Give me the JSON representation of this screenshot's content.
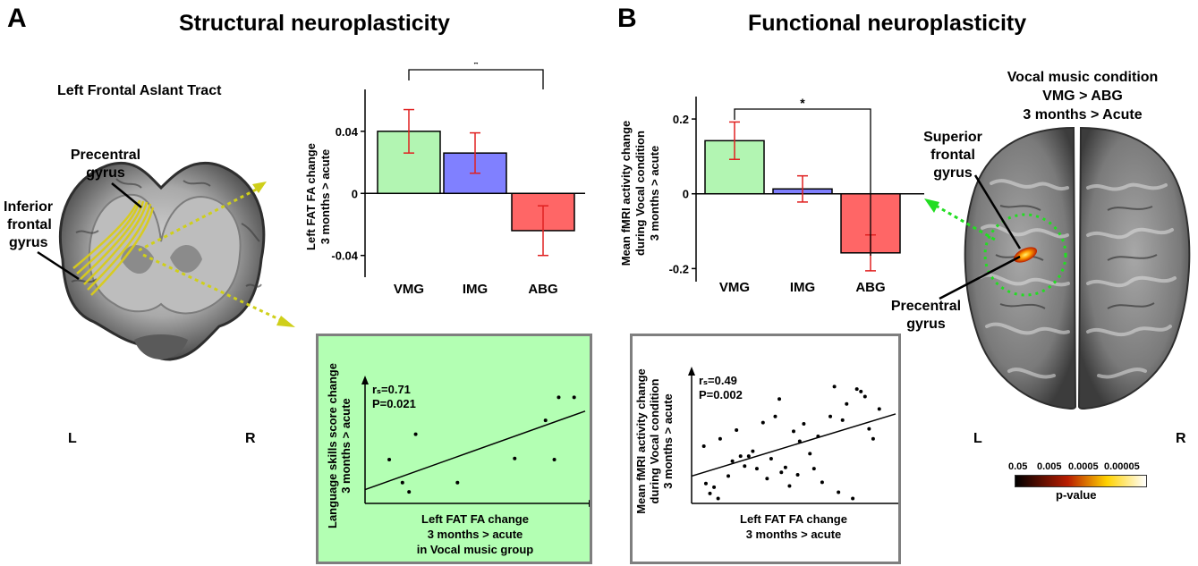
{
  "panel_a": {
    "letter": "A",
    "title": "Structural neuroplasticity",
    "brain_title": "Left Frontal Aslant Tract",
    "label_precentral_line1": "Precentral",
    "label_precentral_line2": "gyrus",
    "label_inferior_line1": "Inferior",
    "label_inferior_line2": "frontal",
    "label_inferior_line3": "gyrus",
    "left_marker": "L",
    "right_marker": "R"
  },
  "panel_b": {
    "letter": "B",
    "title": "Functional neuroplasticity",
    "brain_title_line1": "Vocal music condition",
    "brain_title_line2": "VMG > ABG",
    "brain_title_line3": "3 months > Acute",
    "label_superior_line1": "Superior",
    "label_superior_line2": "frontal",
    "label_superior_line3": "gyrus",
    "label_precentral_line1": "Precentral",
    "label_precentral_line2": "gyrus",
    "left_marker": "L",
    "right_marker": "R",
    "colorbar_ticks": [
      "0.05",
      "0.005",
      "0.0005",
      "0.00005"
    ],
    "colorbar_label": "p-value",
    "colors": {
      "colorbar_start": "#000000",
      "colorbar_mid": "#b81c00",
      "colorbar_hot": "#ffd200",
      "colorbar_end": "#ffffff",
      "tract": "#d9cc1a"
    }
  },
  "chart_data": [
    {
      "type": "bar",
      "ylabel_line1": "Left FAT FA change",
      "ylabel_line2": "3 months > acute",
      "categories": [
        "VMG",
        "IMG",
        "ABG"
      ],
      "values": [
        0.04,
        0.026,
        -0.024
      ],
      "errors": [
        0.014,
        0.013,
        0.016
      ],
      "colors": [
        "#b2f5b2",
        "#8080ff",
        "#ff6666"
      ],
      "yticks": [
        "0.04",
        "0",
        "-0.04"
      ],
      "ylim": [
        -0.054,
        0.067
      ],
      "significance": "*"
    },
    {
      "type": "scatter",
      "xlabel_line1": "Left FAT FA change",
      "xlabel_line2": "3 months > acute",
      "xlabel_line3": "in Vocal music group",
      "ylabel_line1": "Language skills score change",
      "ylabel_line2": "3 months > acute",
      "stat_r": "rₛ=0.71",
      "stat_p": "P=0.021",
      "background": "#b3ffb3",
      "points": [
        [
          0.11,
          0.38
        ],
        [
          0.17,
          0.18
        ],
        [
          0.2,
          0.1
        ],
        [
          0.23,
          0.6
        ],
        [
          0.42,
          0.18
        ],
        [
          0.68,
          0.39
        ],
        [
          0.82,
          0.72
        ],
        [
          0.86,
          0.38
        ],
        [
          0.88,
          0.92
        ],
        [
          0.95,
          0.92
        ]
      ],
      "fit_line": [
        [
          0.0,
          0.12
        ],
        [
          1.0,
          0.8
        ]
      ]
    },
    {
      "type": "bar",
      "ylabel_line1": "Mean fMRI activity change",
      "ylabel_line2": "during Vocal condition",
      "ylabel_line3": "3 months > acute",
      "categories": [
        "VMG",
        "IMG",
        "ABG"
      ],
      "values": [
        0.142,
        0.013,
        -0.158
      ],
      "errors": [
        0.05,
        0.035,
        0.048
      ],
      "colors": [
        "#b2f5b2",
        "#8080ff",
        "#ff6666"
      ],
      "yticks": [
        "0.2",
        "0",
        "-0.2"
      ],
      "ylim": [
        -0.235,
        0.26
      ],
      "significance": "*"
    },
    {
      "type": "scatter",
      "xlabel_line1": "Left FAT FA change",
      "xlabel_line2": "3 months > acute",
      "ylabel_line1": "Mean fMRI activity change",
      "ylabel_line2": "during Vocal condition",
      "ylabel_line3": "3 months > acute",
      "stat_r": "rₛ=0.49",
      "stat_p": "P=0.002",
      "background": "#ffffff",
      "points": [
        [
          0.06,
          0.46
        ],
        [
          0.07,
          0.16
        ],
        [
          0.09,
          0.08
        ],
        [
          0.11,
          0.13
        ],
        [
          0.13,
          0.04
        ],
        [
          0.14,
          0.52
        ],
        [
          0.18,
          0.22
        ],
        [
          0.2,
          0.34
        ],
        [
          0.22,
          0.59
        ],
        [
          0.24,
          0.38
        ],
        [
          0.26,
          0.3
        ],
        [
          0.28,
          0.38
        ],
        [
          0.3,
          0.42
        ],
        [
          0.32,
          0.28
        ],
        [
          0.35,
          0.65
        ],
        [
          0.37,
          0.2
        ],
        [
          0.39,
          0.36
        ],
        [
          0.41,
          0.7
        ],
        [
          0.43,
          0.84
        ],
        [
          0.44,
          0.25
        ],
        [
          0.46,
          0.29
        ],
        [
          0.48,
          0.14
        ],
        [
          0.5,
          0.58
        ],
        [
          0.52,
          0.23
        ],
        [
          0.53,
          0.5
        ],
        [
          0.55,
          0.64
        ],
        [
          0.58,
          0.4
        ],
        [
          0.6,
          0.28
        ],
        [
          0.62,
          0.54
        ],
        [
          0.64,
          0.17
        ],
        [
          0.68,
          0.7
        ],
        [
          0.7,
          0.94
        ],
        [
          0.72,
          0.09
        ],
        [
          0.74,
          0.67
        ],
        [
          0.76,
          0.8
        ],
        [
          0.79,
          0.04
        ],
        [
          0.81,
          0.92
        ],
        [
          0.83,
          0.9
        ],
        [
          0.85,
          0.86
        ],
        [
          0.87,
          0.6
        ],
        [
          0.89,
          0.52
        ],
        [
          0.92,
          0.76
        ]
      ],
      "fit_line": [
        [
          0.0,
          0.22
        ],
        [
          1.0,
          0.72
        ]
      ]
    }
  ]
}
